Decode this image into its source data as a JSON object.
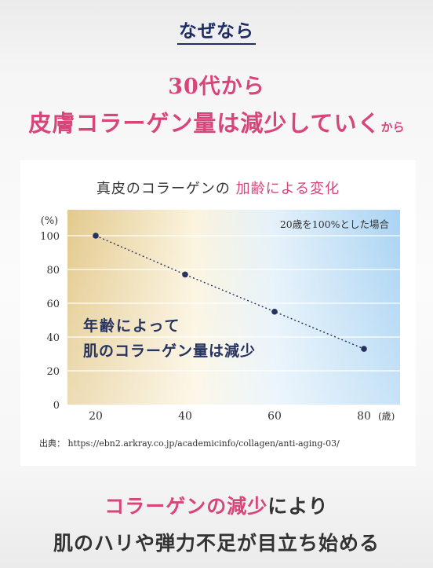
{
  "intro": {
    "why": "なぜなら"
  },
  "headline": {
    "line1": "30代から",
    "line2_main": "皮膚コラーゲン量は減少していく",
    "line2_small": "から"
  },
  "chart_data": {
    "type": "line",
    "title_main": "真皮のコラーゲンの",
    "title_accent": "加齢による変化",
    "x": [
      20,
      40,
      60,
      80
    ],
    "y": [
      100,
      77,
      55,
      33
    ],
    "xticks": [
      "20",
      "40",
      "60",
      "80"
    ],
    "yticks": [
      "0",
      "20",
      "40",
      "60",
      "80",
      "100"
    ],
    "xunit": "(歳)",
    "yunit": "(%)",
    "ylim": [
      0,
      100
    ],
    "xlim": [
      20,
      80
    ],
    "note": "20歳を100%とした場合",
    "annotation_line1": "年齢によって",
    "annotation_line2": "肌のコラーゲン量は減少",
    "grid": true,
    "line_style": "dotted",
    "series_color": "#26335f"
  },
  "source": {
    "label": "出典：",
    "url": "https://ebn2.arkray.co.jp/academicinfo/collagen/anti-aging-03/"
  },
  "conclusion": {
    "line1_accent": "コラーゲンの減少",
    "line1_rest": "により",
    "line2": "肌のハリや弾力不足が目立ち始める"
  }
}
